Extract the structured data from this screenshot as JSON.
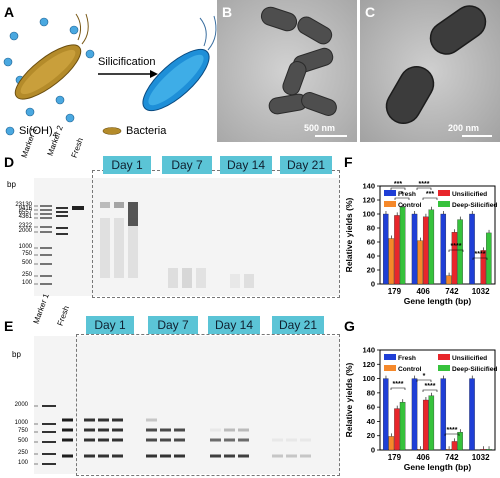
{
  "panelA": {
    "label": "A",
    "arrow_text": "Silicification",
    "legend_siooh": "Si(OH)",
    "legend_siooh_sub": "4",
    "legend_bacteria": "Bacteria"
  },
  "panelB": {
    "label": "B",
    "scale": "500 nm"
  },
  "panelC": {
    "label": "C",
    "scale": "200 nm"
  },
  "panelD": {
    "label": "D",
    "bp": "bp",
    "lanes": [
      "Marker 1",
      "Marker 2",
      "Fresh"
    ],
    "markers": [
      "23130",
      "9416",
      "6557",
      "4361",
      "2322",
      "2000",
      "1000",
      "750",
      "500",
      "250",
      "100"
    ],
    "days": [
      "Day 1",
      "Day 7",
      "Day 14",
      "Day 21"
    ]
  },
  "panelE": {
    "label": "E",
    "bp": "bp",
    "lanes": [
      "Marker 1",
      "Fresh"
    ],
    "markers": [
      "2000",
      "1000",
      "750",
      "500",
      "250",
      "100"
    ],
    "days": [
      "Day 1",
      "Day 7",
      "Day 14",
      "Day 21"
    ]
  },
  "chart_data": [
    {
      "panel": "F",
      "type": "bar",
      "ylabel": "Relative yields (%)",
      "xlabel": "Gene length (bp)",
      "ylim": [
        0,
        140
      ],
      "yticks": [
        "0",
        "20",
        "40",
        "60",
        "80",
        "100",
        "120",
        "140"
      ],
      "categories": [
        "179",
        "406",
        "742",
        "1032"
      ],
      "legend": [
        "Fresh",
        "Unsilicified",
        "Control",
        "Deep-Silicified"
      ],
      "colors": [
        "#1f3fd6",
        "#e8262b",
        "#f5882a",
        "#36c23c"
      ],
      "series": [
        {
          "name": "Fresh",
          "values": [
            100,
            100,
            100,
            100
          ]
        },
        {
          "name": "Control",
          "values": [
            65,
            62,
            12,
            0
          ]
        },
        {
          "name": "Unsilicified",
          "values": [
            98,
            96,
            74,
            48
          ]
        },
        {
          "name": "Deep-Silicified",
          "values": [
            110,
            106,
            92,
            73
          ]
        }
      ],
      "significance": [
        "***",
        "*",
        "****",
        "***",
        "****",
        "****"
      ]
    },
    {
      "panel": "G",
      "type": "bar",
      "ylabel": "Relative yields (%)",
      "xlabel": "Gene length (bp)",
      "ylim": [
        0,
        140
      ],
      "yticks": [
        "0",
        "20",
        "40",
        "60",
        "80",
        "100",
        "120",
        "140"
      ],
      "categories": [
        "179",
        "406",
        "742",
        "1032"
      ],
      "legend": [
        "Fresh",
        "Unsilicified",
        "Control",
        "Deep-Silicified"
      ],
      "colors": [
        "#1f3fd6",
        "#e8262b",
        "#f5882a",
        "#36c23c"
      ],
      "series": [
        {
          "name": "Fresh",
          "values": [
            100,
            100,
            100,
            100
          ]
        },
        {
          "name": "Control",
          "values": [
            19,
            1,
            1,
            0
          ]
        },
        {
          "name": "Unsilicified",
          "values": [
            58,
            70,
            12,
            1
          ]
        },
        {
          "name": "Deep-Silicified",
          "values": [
            67,
            76,
            25,
            1
          ]
        }
      ],
      "significance": [
        "****",
        "*",
        "****",
        "****"
      ]
    }
  ]
}
